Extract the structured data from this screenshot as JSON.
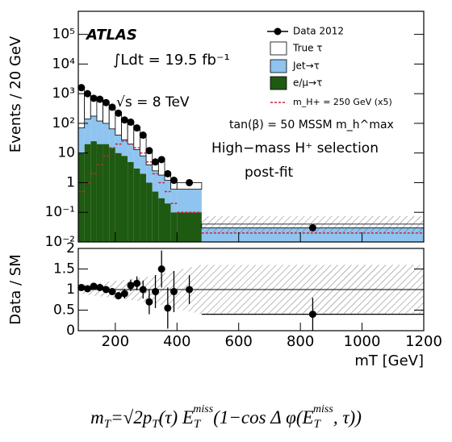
{
  "chart_data": [
    {
      "type": "histogram",
      "ylabel": "Events / 20 GeV",
      "log_y": true,
      "ylim": [
        0.01,
        600000
      ],
      "yticks": [
        {
          "value": 0.01,
          "label": "10⁻²"
        },
        {
          "value": 0.1,
          "label": "10⁻¹"
        },
        1,
        10,
        {
          "value": 100,
          "label": "10²"
        },
        {
          "value": 1000,
          "label": "10³"
        },
        {
          "value": 10000,
          "label": "10⁴"
        },
        {
          "value": 100000,
          "label": "10⁵"
        }
      ],
      "xlim": [
        80,
        1200
      ],
      "bins": [
        80,
        100,
        120,
        140,
        160,
        180,
        200,
        220,
        240,
        260,
        280,
        300,
        320,
        340,
        360,
        380,
        400,
        480,
        1200
      ],
      "series": [
        {
          "name": "e/μ→τ",
          "color": "#1f5a12",
          "values": [
            10,
            20,
            25,
            20,
            20,
            15,
            10,
            8,
            5,
            3,
            2,
            1,
            0.5,
            0.3,
            0.2,
            0.1,
            0.1,
            0
          ]
        },
        {
          "name": "Jet→τ",
          "color": "#8ec4ef",
          "values": [
            60,
            120,
            150,
            100,
            80,
            50,
            30,
            20,
            15,
            10,
            6,
            3,
            2,
            1.5,
            1,
            0.5,
            0.5,
            0.03
          ]
        },
        {
          "name": "True τ",
          "color": "#ffffff",
          "values": [
            1500,
            850,
            520,
            520,
            400,
            285,
            180,
            100,
            90,
            57,
            32,
            8,
            2.5,
            4,
            0.8,
            0.6,
            0.4,
            0.01
          ]
        }
      ],
      "signal": {
        "name": "m_H+ = 250 GeV (x5)",
        "color": "#cc2233",
        "values": [
          0.5,
          1,
          2,
          4,
          8,
          15,
          20,
          25,
          20,
          15,
          10,
          5,
          2,
          1,
          0.5,
          0.2,
          0.1,
          0.02
        ]
      },
      "points": {
        "name": "Data 2012",
        "color": "#000000",
        "x": [
          90,
          110,
          130,
          150,
          170,
          190,
          210,
          230,
          250,
          270,
          290,
          310,
          330,
          350,
          370,
          390,
          440,
          840
        ],
        "values": [
          1600,
          1000,
          700,
          650,
          500,
          350,
          220,
          130,
          110,
          70,
          40,
          12,
          5,
          6,
          2,
          1.2,
          1.0,
          0.03
        ]
      },
      "annotations": [
        "ATLAS",
        "∫Ldt = 19.5 fb⁻¹",
        "√s = 8 TeV",
        "tan(β) = 50 MSSM m_h^max",
        "High−mass H⁺ selection",
        "post-fit"
      ]
    },
    {
      "type": "scatter",
      "ylabel": "Data / SM",
      "xlabel": "mT [GeV]",
      "ylim": [
        0,
        2
      ],
      "yticks": [
        0,
        0.5,
        1,
        1.5,
        2
      ],
      "xlim": [
        80,
        1200
      ],
      "xticks": [
        200,
        400,
        600,
        800,
        1000,
        1200
      ],
      "x": [
        90,
        110,
        130,
        150,
        170,
        190,
        210,
        230,
        250,
        270,
        290,
        310,
        330,
        350,
        370,
        390,
        440,
        840
      ],
      "values": [
        1.05,
        1.02,
        1.08,
        1.05,
        1.0,
        0.95,
        0.85,
        0.9,
        1.1,
        1.15,
        1.0,
        0.7,
        0.95,
        1.5,
        0.55,
        0.95,
        1.0,
        0.4
      ],
      "errors": [
        0.03,
        0.04,
        0.05,
        0.05,
        0.06,
        0.07,
        0.09,
        0.12,
        0.14,
        0.17,
        0.22,
        0.3,
        0.4,
        0.45,
        0.5,
        0.5,
        0.35,
        0.4
      ]
    }
  ],
  "formula": {
    "parts": [
      "m",
      "T",
      "=√",
      "2p",
      "T",
      "(τ) ",
      "E",
      "T",
      "miss",
      "(1−cos Δ φ(",
      "E",
      "T",
      "miss",
      ", τ))"
    ]
  }
}
